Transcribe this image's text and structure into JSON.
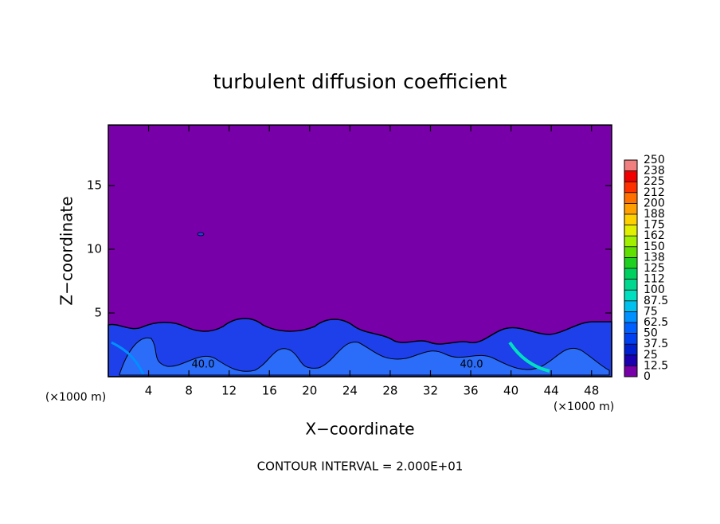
{
  "chart_data": {
    "type": "contour",
    "title": "turbulent diffusion coefficient",
    "x_label": "X−coordinate",
    "y_label": "Z−coordinate",
    "x_unit": "(×1000 m)",
    "x_unit_right": "(×1000 m)",
    "footer": "CONTOUR INTERVAL = 2.000E+01",
    "contour_labels": [
      "40.0",
      "40.0"
    ],
    "xlim": [
      0,
      50
    ],
    "ylim": [
      0,
      19.75
    ],
    "xticks": [
      4,
      8,
      12,
      16,
      20,
      24,
      28,
      32,
      36,
      40,
      44,
      48
    ],
    "yticks": [
      5,
      10,
      15
    ],
    "background_color": "#7800a8",
    "colorbar": {
      "lim": [
        0,
        250
      ],
      "ticks": [
        0,
        12.5,
        25,
        37.5,
        50,
        62.5,
        75,
        87.5,
        100,
        {
          "value": 112.5,
          "label": "112"
        },
        125,
        {
          "value": 137.5,
          "label": "138"
        },
        150,
        {
          "value": 162.5,
          "label": "162"
        },
        175,
        {
          "value": 187.5,
          "label": "188"
        },
        200,
        {
          "value": 212.5,
          "label": "212"
        },
        225,
        {
          "value": 237.5,
          "label": "238"
        },
        250
      ],
      "colors": [
        "#7800a8",
        "#1a00b0",
        "#0020d0",
        "#0040f0",
        "#0060ff",
        "#0090ff",
        "#00c0f0",
        "#00e0c0",
        "#00d890",
        "#00d060",
        "#20d020",
        "#60e000",
        "#a0f000",
        "#e0f000",
        "#ffd000",
        "#ffa000",
        "#ff7000",
        "#ff3000",
        "#f00000",
        "#f08080"
      ]
    }
  }
}
